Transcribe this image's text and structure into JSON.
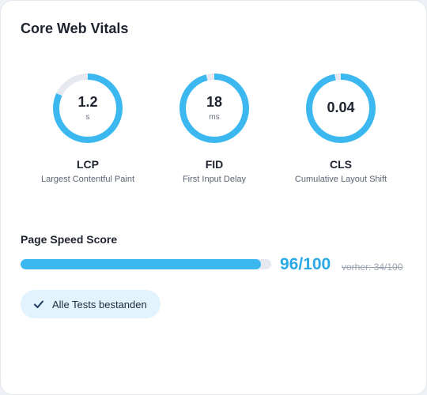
{
  "card": {
    "title": "Core Web Vitals"
  },
  "accent_color": "#3bb8f0",
  "track_color": "#e6eaf0",
  "metrics": [
    {
      "key": "lcp",
      "value": "1.2",
      "unit": "s",
      "abbr": "LCP",
      "name": "Largest Contentful Paint",
      "progress": 0.82
    },
    {
      "key": "fid",
      "value": "18",
      "unit": "ms",
      "abbr": "FID",
      "name": "First Input Delay",
      "progress": 0.96
    },
    {
      "key": "cls",
      "value": "0.04",
      "unit": "",
      "abbr": "CLS",
      "name": "Cumulative Layout Shift",
      "progress": 0.97
    }
  ],
  "page_speed": {
    "label": "Page Speed Score",
    "score": "96/100",
    "score_fraction": 0.96,
    "previous": "vorher: 34/100"
  },
  "status": {
    "label": "Alle Tests bestanden",
    "icon": "check-icon"
  }
}
